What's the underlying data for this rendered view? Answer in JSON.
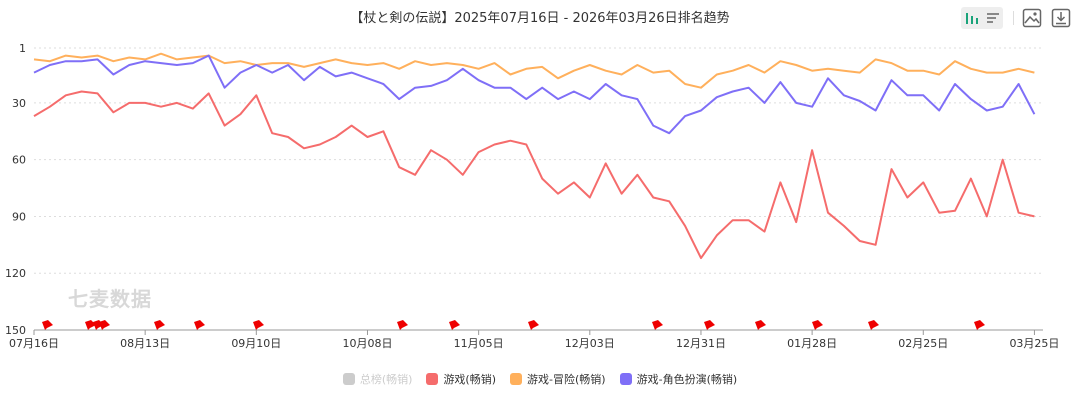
{
  "title": "【杖と剣の伝説】2025年07月16日 - 2026年03月26日排名趋势",
  "watermark": "七麦数据",
  "toolbar": {
    "icons": [
      "bar-chart-icon",
      "list-icon",
      "image-icon",
      "download-icon"
    ],
    "accent": "#1aa37a"
  },
  "chart_data": {
    "type": "line",
    "y_inverted": true,
    "ylim": [
      1,
      150
    ],
    "y_ticks": [
      "1",
      "30",
      "60",
      "90",
      "120",
      "150"
    ],
    "x_ticks": [
      "07月16日",
      "08月13日",
      "09月10日",
      "10月08日",
      "11月05日",
      "12月03日",
      "12月31日",
      "01月28日",
      "02月25日",
      "03月25日"
    ],
    "x_start": "2025-07-16",
    "x_step_days": 4,
    "grid": true,
    "legend_position": "bottom",
    "series": [
      {
        "name": "总榜(畅销)",
        "color": "#cccccc",
        "hidden": true,
        "values": []
      },
      {
        "name": "游戏(畅销)",
        "color": "#f56c6c",
        "values": [
          37,
          32,
          26,
          24,
          25,
          35,
          30,
          30,
          32,
          30,
          33,
          25,
          42,
          36,
          26,
          46,
          48,
          54,
          52,
          48,
          42,
          48,
          45,
          64,
          68,
          55,
          60,
          68,
          56,
          52,
          50,
          52,
          70,
          78,
          72,
          80,
          62,
          78,
          68,
          80,
          82,
          95,
          112,
          100,
          92,
          92,
          98,
          72,
          93,
          55,
          88,
          95,
          103,
          105,
          65,
          80,
          72,
          88,
          87,
          70,
          90,
          60,
          88,
          90
        ]
      },
      {
        "name": "游戏-冒险(畅销)",
        "color": "#ffb05c",
        "values": [
          7,
          8,
          5,
          6,
          5,
          8,
          6,
          7,
          4,
          7,
          6,
          5,
          9,
          8,
          10,
          9,
          9,
          11,
          9,
          7,
          9,
          10,
          9,
          12,
          8,
          10,
          9,
          10,
          12,
          9,
          15,
          12,
          11,
          17,
          13,
          10,
          13,
          15,
          10,
          14,
          13,
          20,
          22,
          15,
          13,
          10,
          14,
          8,
          10,
          13,
          12,
          13,
          14,
          7,
          9,
          13,
          13,
          15,
          8,
          12,
          14,
          14,
          12,
          14
        ]
      },
      {
        "name": "游戏-角色扮演(畅销)",
        "color": "#7f6ff7",
        "values": [
          14,
          10,
          8,
          8,
          7,
          15,
          10,
          8,
          9,
          10,
          9,
          5,
          22,
          14,
          10,
          14,
          10,
          18,
          11,
          16,
          14,
          17,
          20,
          28,
          22,
          21,
          18,
          12,
          18,
          22,
          22,
          28,
          22,
          28,
          24,
          28,
          20,
          26,
          28,
          42,
          46,
          37,
          34,
          27,
          24,
          22,
          30,
          19,
          30,
          32,
          17,
          26,
          29,
          34,
          18,
          26,
          26,
          34,
          20,
          28,
          34,
          32,
          20,
          36
        ]
      }
    ]
  }
}
